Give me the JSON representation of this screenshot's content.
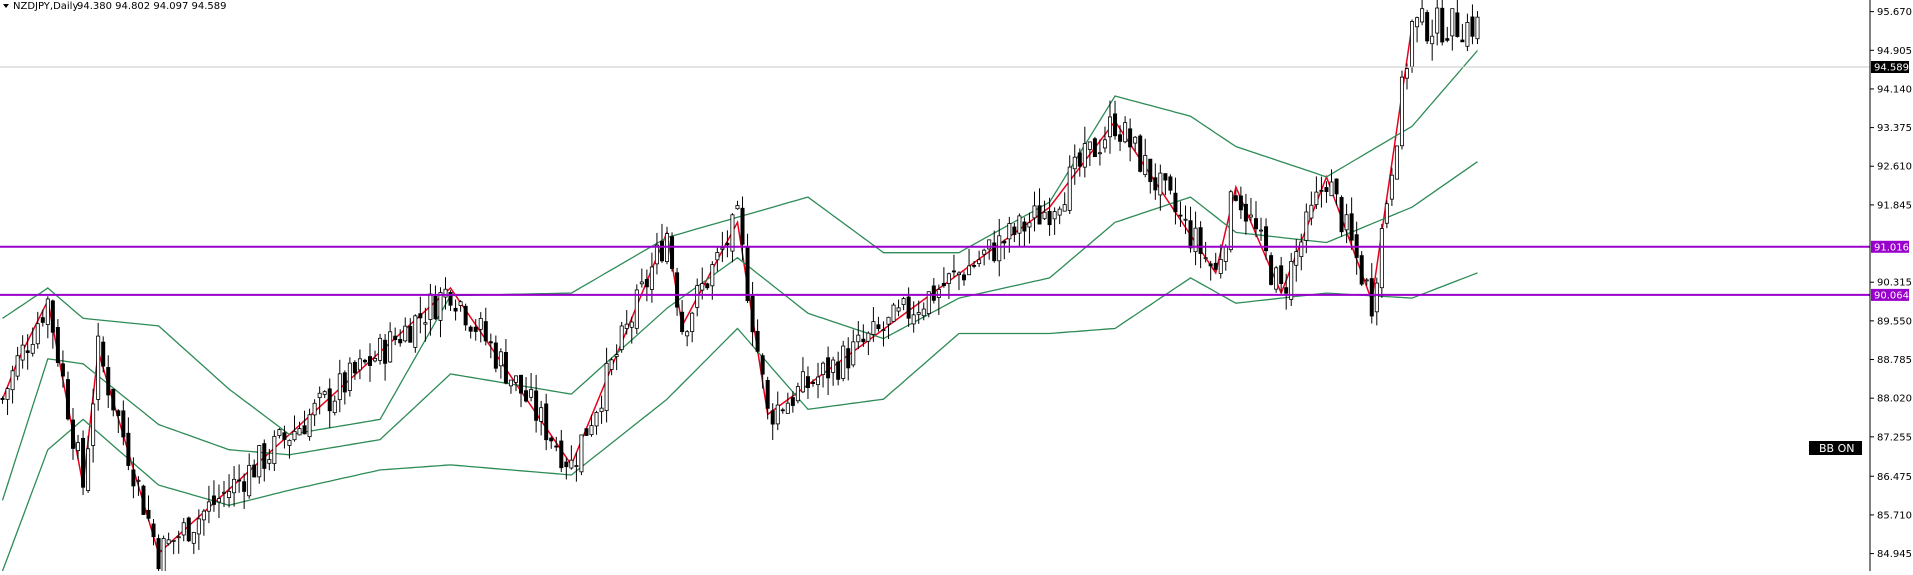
{
  "header": {
    "symbol_label": "NZDJPY,Daily",
    "ohlc_label": "94.380 94.802 94.097 94.589"
  },
  "buttons": {
    "bb_label": "BB ON"
  },
  "colors": {
    "background": "#ffffff",
    "bull_candle": "#ffffff",
    "bear_candle": "#000000",
    "bollinger": "#2e8b57",
    "zigzag": "#e8001c",
    "level_line": "#9900cc",
    "price_badge_bg": "#000000",
    "level_badge_bg": "#9900cc"
  },
  "chart_data": {
    "type": "candlestick",
    "symbol": "NZDJPY",
    "timeframe": "Daily",
    "ylim": [
      84.6,
      95.9
    ],
    "y_ticks": [
      "95.670",
      "94.905",
      "94.140",
      "93.375",
      "92.610",
      "91.845",
      "90.315",
      "89.550",
      "88.785",
      "88.020",
      "87.255",
      "86.475",
      "85.710",
      "84.945"
    ],
    "current_price": "94.589",
    "horizontal_levels": [
      {
        "label": "91.016",
        "value": 91.016
      },
      {
        "label": "90.064",
        "value": 90.064
      }
    ],
    "zigzag": [
      {
        "bar": 0,
        "price": 88.0
      },
      {
        "bar": 3,
        "price": 88.75
      },
      {
        "bar": 9,
        "price": 89.95
      },
      {
        "bar": 16,
        "price": 86.3
      },
      {
        "bar": 19,
        "price": 88.95
      },
      {
        "bar": 31,
        "price": 84.95
      },
      {
        "bar": 89,
        "price": 90.2
      },
      {
        "bar": 113,
        "price": 86.7
      },
      {
        "bar": 132,
        "price": 91.3
      },
      {
        "bar": 135,
        "price": 89.45
      },
      {
        "bar": 146,
        "price": 91.5
      },
      {
        "bar": 152,
        "price": 87.7
      },
      {
        "bar": 208,
        "price": 91.8
      },
      {
        "bar": 221,
        "price": 93.5
      },
      {
        "bar": 241,
        "price": 90.5
      },
      {
        "bar": 245,
        "price": 92.2
      },
      {
        "bar": 254,
        "price": 90.1
      },
      {
        "bar": 263,
        "price": 92.4
      },
      {
        "bar": 272,
        "price": 89.95
      },
      {
        "bar": 280,
        "price": 95.4
      }
    ],
    "bb_upper_anchors": [
      {
        "bar": 0,
        "price": 89.6
      },
      {
        "bar": 9,
        "price": 90.2
      },
      {
        "bar": 16,
        "price": 89.6
      },
      {
        "bar": 31,
        "price": 89.45
      },
      {
        "bar": 45,
        "price": 88.2
      },
      {
        "bar": 57,
        "price": 87.3
      },
      {
        "bar": 75,
        "price": 87.6
      },
      {
        "bar": 89,
        "price": 90.05
      },
      {
        "bar": 113,
        "price": 90.1
      },
      {
        "bar": 132,
        "price": 91.2
      },
      {
        "bar": 146,
        "price": 91.6
      },
      {
        "bar": 160,
        "price": 92.0
      },
      {
        "bar": 175,
        "price": 90.9
      },
      {
        "bar": 190,
        "price": 90.9
      },
      {
        "bar": 208,
        "price": 91.9
      },
      {
        "bar": 221,
        "price": 94.0
      },
      {
        "bar": 236,
        "price": 93.6
      },
      {
        "bar": 245,
        "price": 93.0
      },
      {
        "bar": 263,
        "price": 92.4
      },
      {
        "bar": 280,
        "price": 93.4
      },
      {
        "bar": 293,
        "price": 94.9
      }
    ],
    "bb_middle_anchors": [
      {
        "bar": 0,
        "price": 86.0
      },
      {
        "bar": 9,
        "price": 88.8
      },
      {
        "bar": 16,
        "price": 88.7
      },
      {
        "bar": 31,
        "price": 87.5
      },
      {
        "bar": 45,
        "price": 87.0
      },
      {
        "bar": 57,
        "price": 86.9
      },
      {
        "bar": 75,
        "price": 87.2
      },
      {
        "bar": 89,
        "price": 88.5
      },
      {
        "bar": 113,
        "price": 88.1
      },
      {
        "bar": 132,
        "price": 89.8
      },
      {
        "bar": 146,
        "price": 90.8
      },
      {
        "bar": 160,
        "price": 89.7
      },
      {
        "bar": 175,
        "price": 89.2
      },
      {
        "bar": 190,
        "price": 90.0
      },
      {
        "bar": 208,
        "price": 90.4
      },
      {
        "bar": 221,
        "price": 91.5
      },
      {
        "bar": 236,
        "price": 92.0
      },
      {
        "bar": 245,
        "price": 91.3
      },
      {
        "bar": 263,
        "price": 91.1
      },
      {
        "bar": 280,
        "price": 91.8
      },
      {
        "bar": 293,
        "price": 92.7
      }
    ],
    "bb_lower_anchors": [
      {
        "bar": 0,
        "price": 84.6
      },
      {
        "bar": 9,
        "price": 87.0
      },
      {
        "bar": 16,
        "price": 87.6
      },
      {
        "bar": 31,
        "price": 86.3
      },
      {
        "bar": 45,
        "price": 85.9
      },
      {
        "bar": 57,
        "price": 86.2
      },
      {
        "bar": 75,
        "price": 86.6
      },
      {
        "bar": 89,
        "price": 86.7
      },
      {
        "bar": 113,
        "price": 86.5
      },
      {
        "bar": 132,
        "price": 88.0
      },
      {
        "bar": 146,
        "price": 89.4
      },
      {
        "bar": 160,
        "price": 87.8
      },
      {
        "bar": 175,
        "price": 88.0
      },
      {
        "bar": 190,
        "price": 89.3
      },
      {
        "bar": 208,
        "price": 89.3
      },
      {
        "bar": 221,
        "price": 89.4
      },
      {
        "bar": 236,
        "price": 90.4
      },
      {
        "bar": 245,
        "price": 89.9
      },
      {
        "bar": 263,
        "price": 90.1
      },
      {
        "bar": 280,
        "price": 90.0
      },
      {
        "bar": 293,
        "price": 90.5
      }
    ],
    "grid": false
  }
}
